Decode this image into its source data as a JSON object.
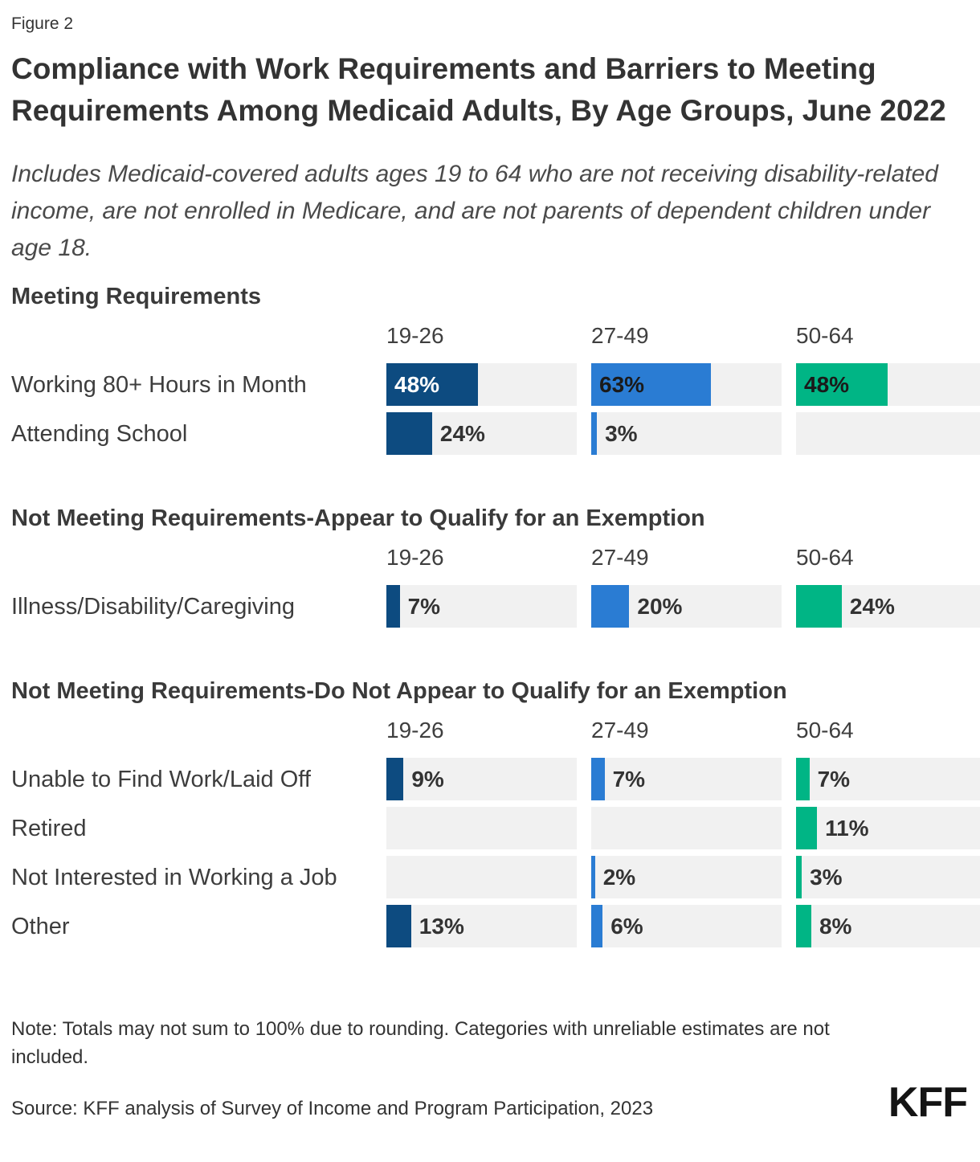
{
  "page": {
    "figure_label": "Figure 2",
    "title": "Compliance with Work Requirements and Barriers to Meeting Requirements Among Medicaid Adults, By Age Groups, June 2022",
    "subtitle": "Includes Medicaid-covered adults ages 19 to 64 who are not receiving disability-related income, are not enrolled in Medicare, and are not parents of dependent children under age 18."
  },
  "chart_data": {
    "type": "bar",
    "orientation": "horizontal",
    "unit": "percent",
    "xlim": [
      0,
      100
    ],
    "grid": false,
    "age_groups": [
      "19-26",
      "27-49",
      "50-64"
    ],
    "group_colors": [
      "#0D4B80",
      "#2A7CD3",
      "#00B585"
    ],
    "track_color": "#F1F1F1",
    "inside_label_threshold": 40,
    "inside_label_colors": [
      "#FFFFFF",
      "#1A1A1A",
      "#1A1A1A"
    ],
    "outside_label_color": "#333333",
    "value_suffix": "%",
    "sections": [
      {
        "heading": "Meeting Requirements",
        "rows": [
          {
            "label": "Working 80+ Hours in Month",
            "values": [
              48,
              63,
              48
            ]
          },
          {
            "label": "Attending School",
            "values": [
              24,
              3,
              null
            ]
          }
        ]
      },
      {
        "heading": "Not Meeting Requirements-Appear to Qualify for an Exemption",
        "rows": [
          {
            "label": "Illness/Disability/Caregiving",
            "values": [
              7,
              20,
              24
            ]
          }
        ]
      },
      {
        "heading": "Not Meeting Requirements-Do Not Appear to Qualify for an Exemption",
        "rows": [
          {
            "label": "Unable to Find Work/Laid Off",
            "values": [
              9,
              7,
              7
            ]
          },
          {
            "label": "Retired",
            "values": [
              null,
              null,
              11
            ]
          },
          {
            "label": "Not Interested in Working a Job",
            "values": [
              null,
              2,
              3
            ]
          },
          {
            "label": "Other",
            "values": [
              13,
              6,
              8
            ]
          }
        ]
      }
    ]
  },
  "footer": {
    "note": "Note: Totals may not sum to 100% due to rounding. Categories with unreliable estimates are not included.",
    "source": "Source: KFF analysis of Survey of Income and Program Participation, 2023",
    "logo": "KFF"
  }
}
